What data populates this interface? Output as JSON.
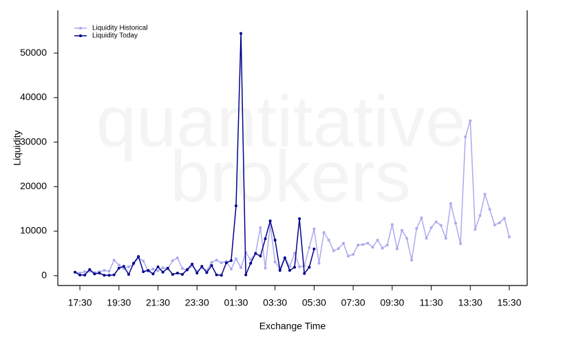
{
  "chart_data": {
    "type": "line",
    "watermark": [
      "quantitative",
      "brokers"
    ],
    "x_label": "Exchange Time",
    "y_label": "Liquidity",
    "categories": [
      null,
      "17:30",
      null,
      null,
      null,
      null,
      null,
      null,
      null,
      "19:30",
      null,
      null,
      null,
      null,
      null,
      null,
      null,
      "21:30",
      null,
      null,
      null,
      null,
      null,
      null,
      null,
      "23:30",
      null,
      null,
      null,
      null,
      null,
      null,
      null,
      "01:30",
      null,
      null,
      null,
      null,
      null,
      null,
      null,
      "03:30",
      null,
      null,
      null,
      null,
      null,
      null,
      null,
      "05:30",
      null,
      null,
      null,
      null,
      null,
      null,
      null,
      "07:30",
      null,
      null,
      null,
      null,
      null,
      null,
      null,
      "09:30",
      null,
      null,
      null,
      null,
      null,
      null,
      null,
      "11:30",
      null,
      null,
      null,
      null,
      null,
      null,
      null,
      "13:30",
      null,
      null,
      null,
      null,
      null,
      null,
      null,
      "15:30"
    ],
    "ylim": [
      -2200,
      59600
    ],
    "yticks": [
      0,
      10000,
      20000,
      30000,
      40000,
      50000
    ],
    "legend": "top-left",
    "series": [
      {
        "name": "Liquidity Historical",
        "color": "#aaaaee",
        "values": [
          800,
          600,
          900,
          1000,
          700,
          900,
          1200,
          1000,
          3500,
          2400,
          1600,
          2000,
          2600,
          4000,
          3300,
          1000,
          1500,
          1100,
          1800,
          1500,
          3400,
          4000,
          1600,
          1200,
          2200,
          1000,
          1800,
          1200,
          3000,
          3500,
          2900,
          3200,
          1500,
          3800,
          1800,
          5200,
          3600,
          5000,
          10800,
          1700,
          11400,
          3100,
          1500,
          4100,
          2100,
          5100,
          2000,
          2200,
          6300,
          10500,
          2800,
          9700,
          8000,
          5600,
          6100,
          7300,
          4400,
          4800,
          6900,
          7000,
          7300,
          6400,
          8000,
          6200,
          6900,
          11500,
          6000,
          10200,
          8400,
          3500,
          10600,
          13000,
          8400,
          10800,
          12100,
          11300,
          8400,
          16200,
          11800,
          7200,
          31200,
          34800,
          10400,
          13500,
          18300,
          14900,
          11400,
          11900,
          12900,
          8700
        ]
      },
      {
        "name": "Liquidity Today",
        "color": "#00008b",
        "values": [
          800,
          150,
          150,
          1400,
          400,
          600,
          100,
          100,
          200,
          1700,
          2100,
          300,
          2800,
          4300,
          900,
          1200,
          400,
          2000,
          800,
          1700,
          300,
          600,
          300,
          1400,
          2600,
          600,
          2100,
          700,
          2300,
          200,
          100,
          2900,
          3400,
          15700,
          54400,
          200,
          2800,
          5000,
          4400,
          8300,
          12300,
          8000,
          1200,
          4000,
          1200,
          1900,
          12800,
          500,
          1900,
          6000,
          null,
          null,
          null,
          null,
          null,
          null,
          null,
          null,
          null,
          null,
          null,
          null,
          null,
          null,
          null,
          null,
          null,
          null,
          null,
          null,
          null,
          null,
          null,
          null,
          null,
          null,
          null,
          null,
          null,
          null,
          null,
          null,
          null,
          null,
          null,
          null,
          null,
          null,
          null,
          null
        ]
      }
    ]
  }
}
